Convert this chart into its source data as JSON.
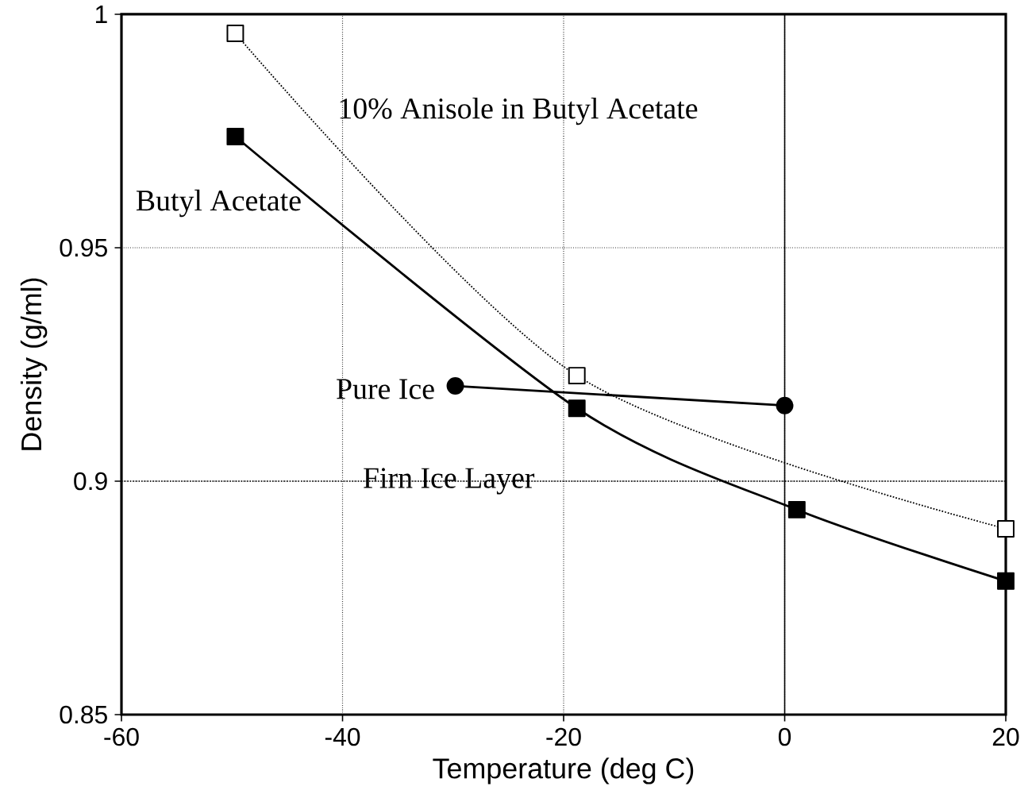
{
  "chart_data": {
    "type": "line",
    "xlabel": "Temperature (deg C)",
    "ylabel": "Density (g/ml)",
    "xlim": [
      -60,
      20
    ],
    "ylim": [
      0.85,
      1
    ],
    "xticks": [
      -60,
      -40,
      -20,
      0,
      20
    ],
    "yticks": [
      0.85,
      0.9,
      0.95,
      1
    ],
    "grid": true,
    "series": [
      {
        "name": "Butyl Acetate",
        "color": "#000000",
        "marker": "square",
        "line_style": "solid",
        "x": [
          -49.7,
          -18.8,
          1.1,
          20
        ],
        "values": [
          0.9738,
          0.9156,
          0.8939,
          0.8786
        ]
      },
      {
        "name": "10% Anisole in Butyl Acetate",
        "color": "#000000",
        "marker": "square",
        "line_style": "dotted",
        "x": [
          -49.7,
          -18.8,
          20
        ],
        "values": [
          0.9959,
          0.9226,
          0.8898
        ]
      },
      {
        "name": "Pure Ice",
        "color": "#000000",
        "marker": "circle",
        "line_style": "solid",
        "x": [
          -29.8,
          0
        ],
        "values": [
          0.9204,
          0.9162
        ]
      }
    ],
    "ref_lines": [
      {
        "axis": "x",
        "value": 0,
        "line_style": "solid"
      },
      {
        "axis": "y",
        "value": 0.9,
        "label": "Firn Ice Layer",
        "line_style": "dotted"
      }
    ]
  }
}
